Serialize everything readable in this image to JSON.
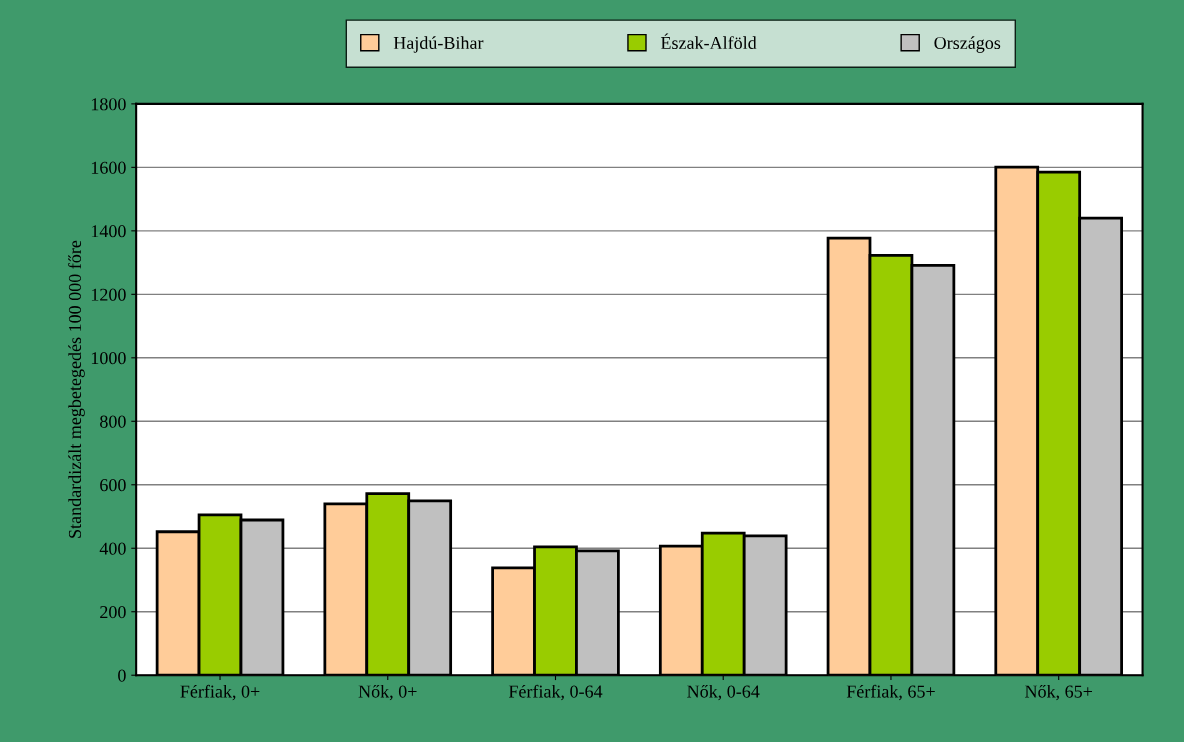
{
  "chart_data": {
    "type": "bar",
    "ylabel": "Standardizált megbetegedés 100 000 főre",
    "categories": [
      "Férfiak, 0+",
      "Nők, 0+",
      "Férfiak, 0-64",
      "Nők, 0-64",
      "Férfiak, 65+",
      "Nők, 65+"
    ],
    "series": [
      {
        "name": "Hajdú-Bihar",
        "color": "#ffcc99",
        "values": [
          452,
          540,
          338,
          407,
          1377,
          1601
        ]
      },
      {
        "name": "Észak-Alföld",
        "color": "#99cc00",
        "values": [
          505,
          572,
          404,
          448,
          1323,
          1585
        ]
      },
      {
        "name": "Országos",
        "color": "#c0c0c0",
        "values": [
          489,
          549,
          392,
          439,
          1291,
          1440
        ]
      }
    ],
    "ylim": [
      0,
      1800
    ],
    "yticks": [
      0,
      200,
      400,
      600,
      800,
      1000,
      1200,
      1400,
      1600,
      1800
    ],
    "grid": "y",
    "legend": "top"
  }
}
